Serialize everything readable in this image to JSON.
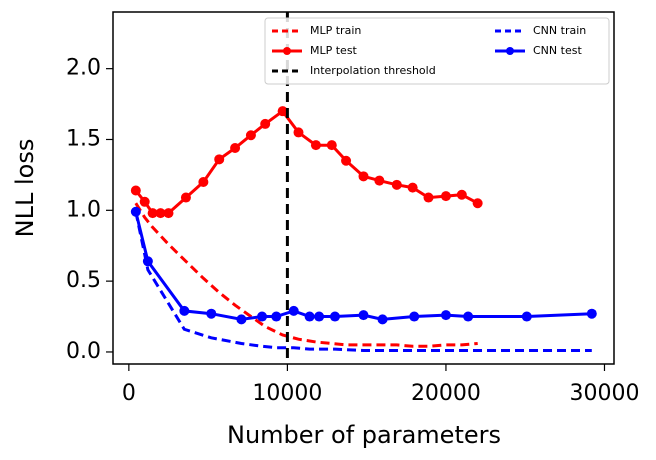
{
  "chart_data": {
    "type": "line",
    "xlabel": "Number of parameters",
    "ylabel": "NLL loss",
    "xlim": [
      -1000,
      30600
    ],
    "ylim": [
      -0.085,
      2.4
    ],
    "xticks": [
      0,
      10000,
      20000,
      30000
    ],
    "yticks": [
      {
        "value": 0,
        "label": "0.0"
      },
      0.5,
      {
        "value": 1,
        "label": "1.0"
      },
      1.5,
      {
        "value": 2,
        "label": "2.0"
      }
    ],
    "legend": "upper right",
    "series": [
      {
        "name": "MLP train",
        "color": "#ff0000",
        "linestyle": "dashed",
        "marker": "none",
        "x": [
          440,
          1000,
          1500,
          2000,
          2500,
          3600,
          4700,
          5700,
          6700,
          7700,
          8600,
          9700,
          10700,
          11800,
          12800,
          13700,
          14800,
          15800,
          16900,
          17900,
          18900,
          20000,
          21000,
          22000
        ],
        "values": [
          1.05,
          0.95,
          0.88,
          0.82,
          0.76,
          0.64,
          0.52,
          0.42,
          0.33,
          0.25,
          0.18,
          0.12,
          0.09,
          0.07,
          0.06,
          0.05,
          0.05,
          0.05,
          0.05,
          0.04,
          0.04,
          0.05,
          0.05,
          0.06
        ]
      },
      {
        "name": "MLP test",
        "color": "#ff0000",
        "linestyle": "solid",
        "marker": "o",
        "x": [
          440,
          1000,
          1500,
          2000,
          2500,
          3600,
          4700,
          5700,
          6700,
          7700,
          8600,
          9700,
          10700,
          11800,
          12800,
          13700,
          14800,
          15800,
          16900,
          17900,
          18900,
          20000,
          21000,
          22000
        ],
        "values": [
          1.14,
          1.06,
          0.98,
          0.98,
          0.98,
          1.09,
          1.2,
          1.36,
          1.44,
          1.53,
          1.61,
          1.7,
          1.55,
          1.46,
          1.46,
          1.35,
          1.24,
          1.21,
          1.18,
          1.16,
          1.09,
          1.1,
          1.11,
          1.05
        ]
      },
      {
        "name": "CNN train",
        "color": "#0000ff",
        "linestyle": "dashed",
        "marker": "none",
        "x": [
          440,
          1200,
          3500,
          5200,
          7100,
          8400,
          9300,
          10400,
          11400,
          12000,
          13000,
          14800,
          16000,
          18000,
          20000,
          21400,
          25100,
          29200
        ],
        "values": [
          0.99,
          0.58,
          0.16,
          0.1,
          0.06,
          0.04,
          0.03,
          0.03,
          0.02,
          0.02,
          0.02,
          0.01,
          0.01,
          0.01,
          0.01,
          0.01,
          0.01,
          0.01
        ]
      },
      {
        "name": "CNN test",
        "color": "#0000ff",
        "linestyle": "solid",
        "marker": "o",
        "x": [
          440,
          1200,
          3500,
          5200,
          7100,
          8400,
          9300,
          10400,
          11400,
          12000,
          13000,
          14800,
          16000,
          18000,
          20000,
          21400,
          25100,
          29200
        ],
        "values": [
          0.99,
          0.64,
          0.29,
          0.27,
          0.23,
          0.25,
          0.25,
          0.29,
          0.25,
          0.25,
          0.25,
          0.26,
          0.23,
          0.25,
          0.26,
          0.25,
          0.25,
          0.27
        ]
      }
    ],
    "vline": {
      "name": "Interpolation threshold",
      "x": 10000,
      "color": "#000000"
    }
  }
}
